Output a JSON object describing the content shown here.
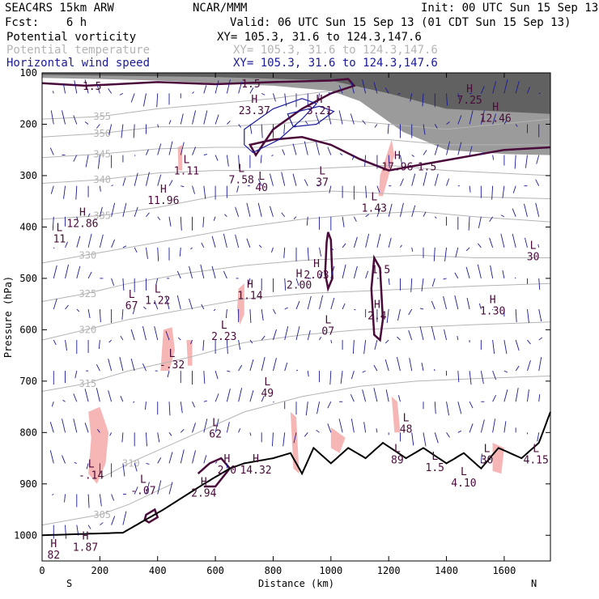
{
  "header": {
    "model": "SEAC4RS 15km ARW",
    "org": "NCAR/MMM",
    "init": "Init: 00 UTC Sun 15 Sep 13",
    "fcst": "Fcst:    6 h",
    "valid": "Valid: 06 UTC Sun 15 Sep 13 (01 CDT Sun 15 Sep 13)",
    "fields": [
      {
        "name": "Potential vorticity",
        "xy": "XY= 105.3, 31.6 to 124.3,147.6",
        "color": "#000000"
      },
      {
        "name": "Potential temperature",
        "xy": "XY= 105.3, 31.6 to 124.3,147.6",
        "color": "#b4b4b4"
      },
      {
        "name": "Horizontal wind speed",
        "xy": "XY= 105.3, 31.6 to 124.3,147.6",
        "color": "#1a1a9a"
      }
    ]
  },
  "chart_data": {
    "type": "cross-section",
    "xlabel": "Distance (km)",
    "ylabel": "Pressure (hPa)",
    "xlim": [
      0,
      1760
    ],
    "ylim": [
      1050,
      100
    ],
    "x_ticks": [
      "0",
      "200",
      "400",
      "600",
      "800",
      "1000",
      "1200",
      "1400",
      "1600"
    ],
    "y_ticks": [
      "100",
      "200",
      "300",
      "400",
      "500",
      "600",
      "700",
      "800",
      "900",
      "1000"
    ],
    "left_end": "S",
    "right_end": "N",
    "colors": {
      "pv_contour": "#4a0a3a",
      "theta": "#b4b4b4",
      "wind": "#1a1a9a",
      "terrain": "#000000",
      "pink": "#f7b6b6"
    },
    "theta_contours": [
      {
        "label": "355",
        "points": [
          [
            0,
            190
          ],
          [
            200,
            185
          ],
          [
            400,
            170
          ],
          [
            600,
            160
          ],
          [
            800,
            150
          ],
          [
            1000,
            135
          ]
        ]
      },
      {
        "label": "350",
        "points": [
          [
            0,
            225
          ],
          [
            200,
            218
          ],
          [
            400,
            205
          ],
          [
            600,
            205
          ],
          [
            800,
            200
          ],
          [
            1000,
            190
          ],
          [
            1200,
            200
          ],
          [
            1400,
            210
          ],
          [
            1760,
            190
          ]
        ]
      },
      {
        "label": "345",
        "points": [
          [
            0,
            265
          ],
          [
            200,
            258
          ],
          [
            400,
            248
          ],
          [
            600,
            245
          ],
          [
            800,
            245
          ],
          [
            1000,
            230
          ],
          [
            1200,
            230
          ],
          [
            1400,
            240
          ],
          [
            1760,
            240
          ]
        ]
      },
      {
        "label": "340",
        "points": [
          [
            0,
            315
          ],
          [
            200,
            308
          ],
          [
            400,
            295
          ],
          [
            600,
            290
          ],
          [
            800,
            290
          ],
          [
            1000,
            285
          ],
          [
            1200,
            280
          ],
          [
            1400,
            290
          ],
          [
            1760,
            300
          ]
        ]
      },
      {
        "label": "335",
        "points": [
          [
            0,
            385
          ],
          [
            200,
            378
          ],
          [
            400,
            362
          ],
          [
            600,
            340
          ],
          [
            800,
            335
          ],
          [
            1000,
            330
          ],
          [
            1200,
            335
          ],
          [
            1400,
            340
          ],
          [
            1760,
            345
          ]
        ]
      },
      {
        "label": "330",
        "points": [
          [
            0,
            470
          ],
          [
            150,
            455
          ],
          [
            300,
            440
          ],
          [
            500,
            420
          ],
          [
            700,
            400
          ],
          [
            900,
            385
          ],
          [
            1100,
            375
          ],
          [
            1300,
            370
          ],
          [
            1500,
            380
          ],
          [
            1760,
            390
          ]
        ]
      },
      {
        "label": "325",
        "points": [
          [
            0,
            545
          ],
          [
            150,
            530
          ],
          [
            300,
            510
          ],
          [
            500,
            490
          ],
          [
            700,
            475
          ],
          [
            900,
            465
          ],
          [
            1100,
            460
          ],
          [
            1300,
            455
          ],
          [
            1500,
            460
          ],
          [
            1760,
            460
          ]
        ]
      },
      {
        "label": "320",
        "points": [
          [
            0,
            620
          ],
          [
            150,
            600
          ],
          [
            300,
            580
          ],
          [
            500,
            560
          ],
          [
            700,
            540
          ],
          [
            900,
            530
          ],
          [
            1100,
            525
          ],
          [
            1300,
            520
          ],
          [
            1500,
            515
          ],
          [
            1760,
            510
          ]
        ]
      },
      {
        "label": "315",
        "points": [
          [
            0,
            720
          ],
          [
            150,
            705
          ],
          [
            300,
            680
          ],
          [
            500,
            655
          ],
          [
            700,
            625
          ],
          [
            900,
            610
          ],
          [
            1100,
            600
          ],
          [
            1300,
            595
          ],
          [
            1500,
            590
          ],
          [
            1760,
            585
          ]
        ]
      },
      {
        "label": "310",
        "points": [
          [
            200,
            890
          ],
          [
            300,
            860
          ],
          [
            500,
            810
          ],
          [
            700,
            760
          ],
          [
            900,
            730
          ],
          [
            1100,
            710
          ],
          [
            1300,
            700
          ],
          [
            1500,
            695
          ],
          [
            1760,
            690
          ]
        ]
      },
      {
        "label": "305",
        "points": [
          [
            0,
            980
          ],
          [
            200,
            960
          ],
          [
            300,
            940
          ],
          [
            450,
            900
          ]
        ]
      }
    ],
    "pv_contour_labels": [
      {
        "label": "1.5",
        "x": 140,
        "p": 133
      },
      {
        "label": "1.5",
        "x": 690,
        "p": 128
      },
      {
        "label": "1.5",
        "x": 1300,
        "p": 290
      },
      {
        "label": "1.5",
        "x": 1140,
        "p": 490
      }
    ],
    "extrema": [
      {
        "kind": "L",
        "value": "1.11",
        "x": 500,
        "p": 298
      },
      {
        "kind": "H",
        "value": "11.96",
        "x": 420,
        "p": 355
      },
      {
        "kind": "H",
        "value": "12.86",
        "x": 140,
        "p": 400
      },
      {
        "kind": "L",
        "value": "11",
        "x": 60,
        "p": 430
      },
      {
        "kind": "H",
        "value": "23.37",
        "x": 735,
        "p": 180
      },
      {
        "kind": "H",
        "value": "3.21",
        "x": 960,
        "p": 180
      },
      {
        "kind": "L",
        "value": "7.58",
        "x": 690,
        "p": 315
      },
      {
        "kind": "L",
        "value": "40",
        "x": 760,
        "p": 330
      },
      {
        "kind": "L",
        "value": "37",
        "x": 970,
        "p": 320
      },
      {
        "kind": "H",
        "value": "17.96",
        "x": 1230,
        "p": 290
      },
      {
        "kind": "L",
        "value": "1.43",
        "x": 1150,
        "p": 370
      },
      {
        "kind": "H",
        "value": "7.25",
        "x": 1480,
        "p": 160
      },
      {
        "kind": "H",
        "value": "12.46",
        "x": 1570,
        "p": 195
      },
      {
        "kind": "L",
        "value": "30",
        "x": 1700,
        "p": 465
      },
      {
        "kind": "H",
        "value": "2.03",
        "x": 950,
        "p": 500
      },
      {
        "kind": "H",
        "value": "2.00",
        "x": 890,
        "p": 520
      },
      {
        "kind": "H",
        "value": "2.4",
        "x": 1160,
        "p": 580
      },
      {
        "kind": "L",
        "value": "07",
        "x": 990,
        "p": 610
      },
      {
        "kind": "L",
        "value": "1.22",
        "x": 400,
        "p": 550
      },
      {
        "kind": "L",
        "value": "67",
        "x": 310,
        "p": 560
      },
      {
        "kind": "H",
        "value": "1.14",
        "x": 720,
        "p": 540
      },
      {
        "kind": "H",
        "value": "1.30",
        "x": 1560,
        "p": 570
      },
      {
        "kind": "L",
        "value": "2.23",
        "x": 630,
        "p": 620
      },
      {
        "kind": "L",
        "value": "-.32",
        "x": 450,
        "p": 675
      },
      {
        "kind": "L",
        "value": "49",
        "x": 780,
        "p": 730
      },
      {
        "kind": "L",
        "value": "62",
        "x": 600,
        "p": 810
      },
      {
        "kind": "H",
        "value": "2.0",
        "x": 640,
        "p": 880
      },
      {
        "kind": "H",
        "value": "14.32",
        "x": 740,
        "p": 880
      },
      {
        "kind": "L",
        "value": "48",
        "x": 1260,
        "p": 800
      },
      {
        "kind": "L",
        "value": "89",
        "x": 1230,
        "p": 860
      },
      {
        "kind": "L",
        "value": "1.5",
        "x": 1360,
        "p": 875
      },
      {
        "kind": "L",
        "value": "30",
        "x": 1540,
        "p": 860
      },
      {
        "kind": "L",
        "value": "4.15",
        "x": 1710,
        "p": 860
      },
      {
        "kind": "L",
        "value": "4.10",
        "x": 1460,
        "p": 905
      },
      {
        "kind": "L",
        "value": "-.14",
        "x": 170,
        "p": 890
      },
      {
        "kind": "L",
        "value": "-.07",
        "x": 350,
        "p": 920
      },
      {
        "kind": "H",
        "value": "2.94",
        "x": 560,
        "p": 925
      },
      {
        "kind": "H",
        "value": "1.87",
        "x": 150,
        "p": 1030
      },
      {
        "kind": "H",
        "value": "82",
        "x": 40,
        "p": 1045
      }
    ]
  }
}
